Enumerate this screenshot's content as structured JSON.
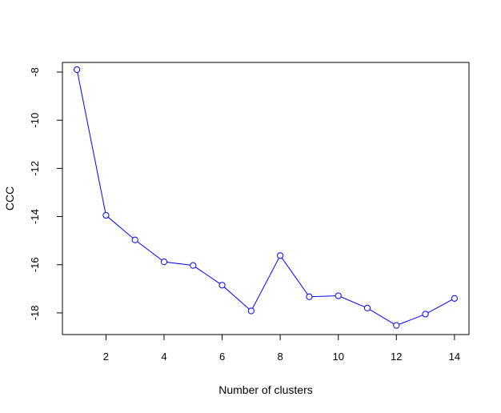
{
  "chart_data": {
    "type": "line",
    "title": "",
    "xlabel": "Number of clusters",
    "ylabel": "CCC",
    "x": [
      1,
      2,
      3,
      4,
      5,
      6,
      7,
      8,
      9,
      10,
      11,
      12,
      13,
      14
    ],
    "series": [
      {
        "values": [
          -7.9,
          -13.95,
          -14.97,
          -15.88,
          -16.03,
          -16.85,
          -17.92,
          -15.62,
          -17.33,
          -17.29,
          -17.8,
          -18.52,
          -18.05,
          -17.4
        ],
        "color": "#0000ff",
        "marker": "open-circle"
      }
    ],
    "xlim": [
      0.5,
      14.5
    ],
    "ylim": [
      -18.9,
      -7.6
    ],
    "xticks": [
      2,
      4,
      6,
      8,
      10,
      12,
      14
    ],
    "yticks": [
      -8,
      -10,
      -12,
      -14,
      -16,
      -18
    ],
    "grid": false,
    "legend": "none"
  }
}
